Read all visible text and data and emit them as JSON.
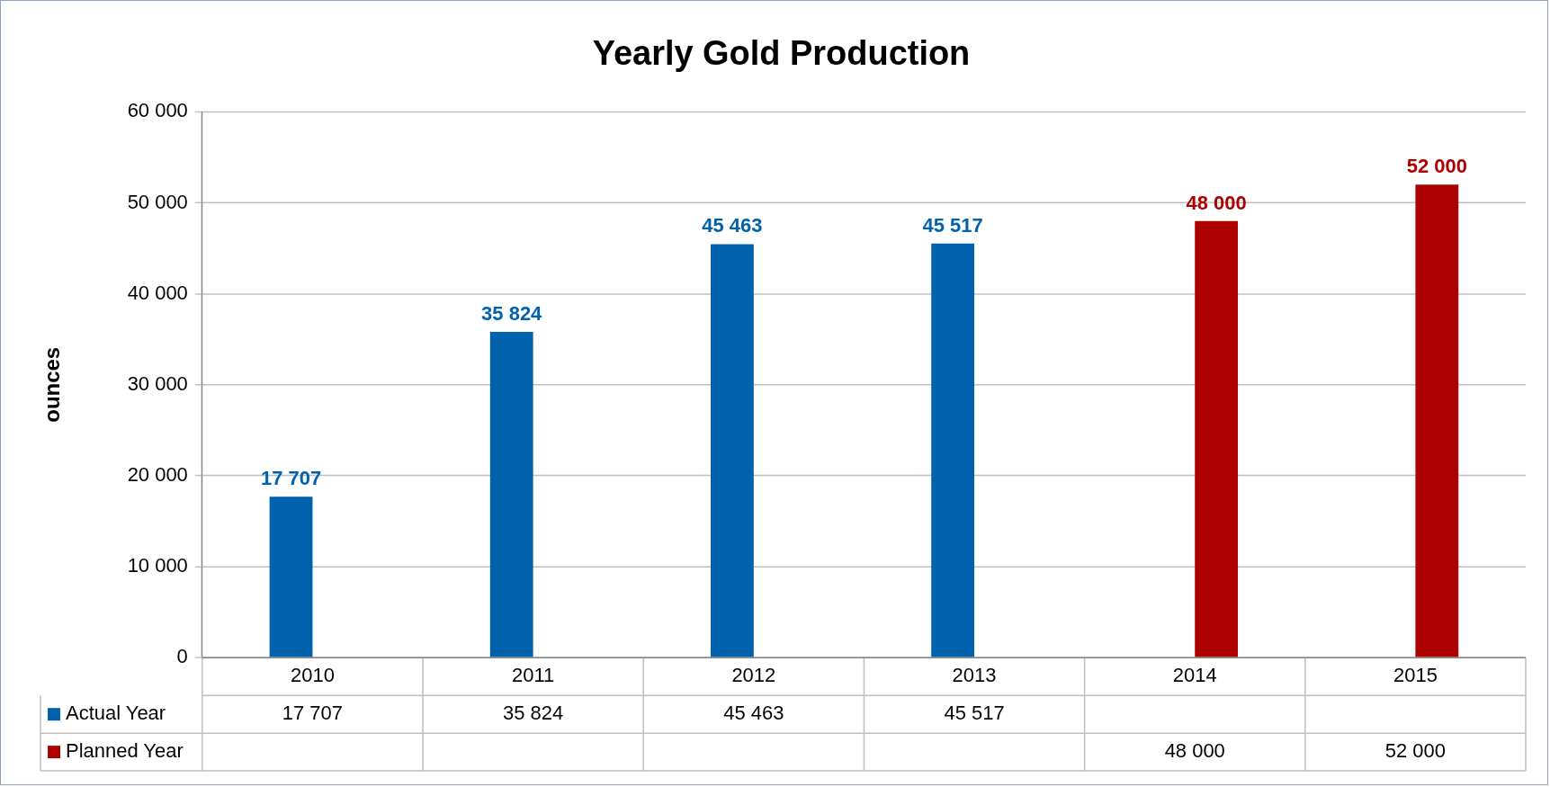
{
  "chart_data": {
    "type": "bar",
    "title": "Yearly Gold Production",
    "ylabel": "ounces",
    "categories": [
      "2010",
      "2011",
      "2012",
      "2013",
      "2014",
      "2015"
    ],
    "series": [
      {
        "name": "Actual Year",
        "color": "#0062ac",
        "values": [
          17707,
          35824,
          45463,
          45517,
          null,
          null
        ],
        "value_labels": [
          "17 707",
          "35 824",
          "45 463",
          "45 517",
          null,
          null
        ]
      },
      {
        "name": "Planned Year",
        "color": "#ad0000",
        "values": [
          null,
          null,
          null,
          null,
          48000,
          52000
        ],
        "value_labels": [
          null,
          null,
          null,
          null,
          "48 000",
          "52 000"
        ]
      }
    ],
    "ylim": [
      0,
      60000
    ],
    "yticks": [
      0,
      {
        "value": 10000,
        "label": "10 000"
      },
      {
        "value": 20000,
        "label": "20 000"
      },
      {
        "value": 30000,
        "label": "30 000"
      },
      {
        "value": 40000,
        "label": "40 000"
      },
      {
        "value": 50000,
        "label": "50 000"
      },
      {
        "value": 60000,
        "label": "60 000"
      }
    ],
    "grid": "y",
    "legend": "bottom"
  }
}
